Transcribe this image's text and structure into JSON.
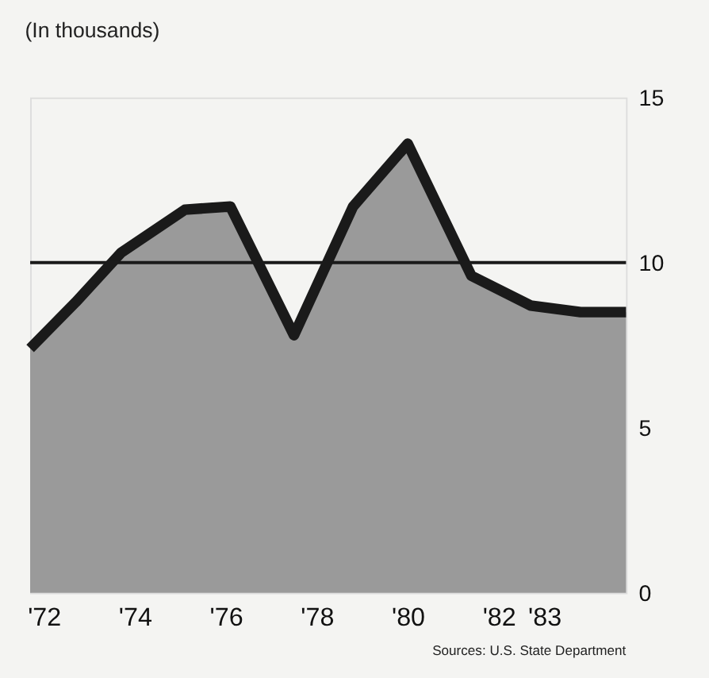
{
  "chart_data": {
    "type": "area",
    "title": "(In thousands)",
    "x": [
      1971.7,
      1972.7,
      1973.7,
      1975.1,
      1976.1,
      1977.5,
      1978.8,
      1980.0,
      1981.4,
      1982.7,
      1983.8,
      1984.8
    ],
    "series": [
      {
        "color": "#1a1a1a",
        "values": [
          7.4,
          8.8,
          10.3,
          11.6,
          11.7,
          7.8,
          11.7,
          13.6,
          9.6,
          8.7,
          8.5,
          8.5
        ]
      }
    ],
    "xlim": [
      1971.7,
      1984.8
    ],
    "xticks": [
      {
        "value": 1972,
        "label": "'72"
      },
      {
        "value": 1974,
        "label": "'74"
      },
      {
        "value": 1976,
        "label": "'76"
      },
      {
        "value": 1978,
        "label": "'78"
      },
      {
        "value": 1980,
        "label": "'80"
      },
      {
        "value": 1982,
        "label": "'82"
      },
      {
        "value": 1983,
        "label": "'83"
      }
    ],
    "ylim": [
      0,
      15
    ],
    "yticks": [
      0,
      5,
      10,
      15
    ],
    "ref_lines": [
      {
        "axis": "y",
        "value": 10,
        "color": "#1a1a1a"
      }
    ],
    "grid": false,
    "annotations": [
      "Sources: U.S. State Department"
    ]
  }
}
